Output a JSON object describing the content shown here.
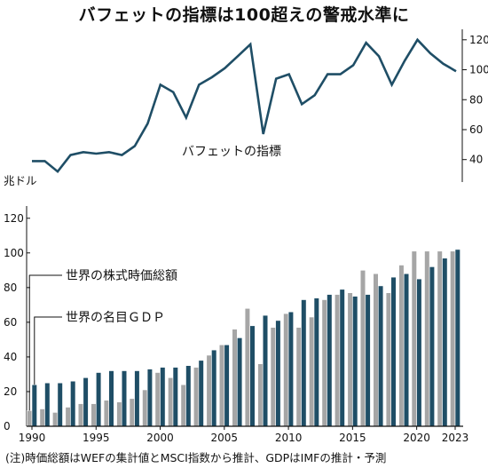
{
  "title": "バフェットの指標は100超えの警戒水準に",
  "note": "(注)時価総額はWEFの集計値とMSCI指数から推計、GDPはIMFの推計・予測",
  "colors": {
    "line": "#1f4e66",
    "market_cap": "#a6a6a6",
    "gdp": "#1f4e66",
    "axis": "#111111"
  },
  "chart_data": [
    {
      "type": "line",
      "label": "バフェットの指標",
      "x": [
        1990,
        1991,
        1992,
        1993,
        1994,
        1995,
        1996,
        1997,
        1998,
        1999,
        2000,
        2001,
        2002,
        2003,
        2004,
        2005,
        2006,
        2007,
        2008,
        2009,
        2010,
        2011,
        2012,
        2013,
        2014,
        2015,
        2016,
        2017,
        2018,
        2019,
        2020,
        2021,
        2022,
        2023
      ],
      "y": [
        39,
        39,
        32,
        43,
        45,
        44,
        45,
        43,
        49,
        64,
        90,
        85,
        68,
        90,
        95,
        101,
        109,
        117,
        57,
        94,
        97,
        77,
        83,
        97,
        97,
        103,
        118,
        109,
        90,
        106,
        120,
        111,
        104,
        99
      ],
      "yticks": [
        40,
        60,
        80,
        100,
        120
      ],
      "ylim": [
        25,
        127
      ],
      "yaxis_side": "right"
    },
    {
      "type": "bar",
      "unit": "兆ドル",
      "x": [
        1990,
        1991,
        1992,
        1993,
        1994,
        1995,
        1996,
        1997,
        1998,
        1999,
        2000,
        2001,
        2002,
        2003,
        2004,
        2005,
        2006,
        2007,
        2008,
        2009,
        2010,
        2011,
        2012,
        2013,
        2014,
        2015,
        2016,
        2017,
        2018,
        2019,
        2020,
        2021,
        2022,
        2023
      ],
      "xticks": [
        1990,
        1995,
        2000,
        2005,
        2010,
        2015,
        2020,
        2023
      ],
      "yticks": [
        0,
        20,
        40,
        60,
        80,
        100,
        120
      ],
      "ylim": [
        0,
        125
      ],
      "series": [
        {
          "name": "世界の株式時価総額",
          "values": [
            9,
            10,
            8,
            11,
            13,
            13,
            15,
            14,
            16,
            21,
            31,
            28,
            24,
            34,
            41,
            47,
            56,
            68,
            36,
            57,
            65,
            57,
            63,
            73,
            76,
            77,
            90,
            88,
            77,
            93,
            101,
            101,
            101,
            101
          ]
        },
        {
          "name": "世界の名目ＧＤＰ",
          "values": [
            24,
            25,
            25,
            26,
            28,
            31,
            32,
            32,
            32,
            33,
            34,
            34,
            35,
            38,
            44,
            47,
            51,
            58,
            64,
            61,
            66,
            73,
            74,
            76,
            79,
            75,
            76,
            81,
            86,
            88,
            85,
            92,
            97,
            102
          ]
        }
      ]
    }
  ]
}
